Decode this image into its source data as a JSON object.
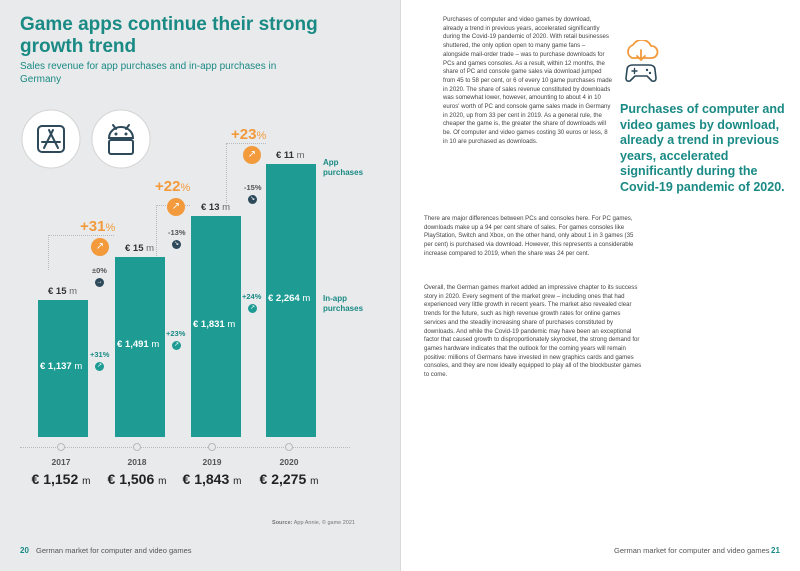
{
  "left": {
    "title": "Game apps continue their strong growth trend",
    "subtitle": "Sales revenue for app purchases and in-app purchases in Germany",
    "legend": {
      "app": "App purchases",
      "inapp": "In-app purchases"
    },
    "source_label": "Source:",
    "source_text": "App Annie, © game 2021",
    "page_number": "20",
    "footer": "German market for computer and video games"
  },
  "chart_data": {
    "type": "bar",
    "categories": [
      "2017",
      "2018",
      "2019",
      "2020"
    ],
    "series": [
      {
        "name": "In-app purchases",
        "values": [
          1137,
          1491,
          1831,
          2264
        ],
        "labels": [
          "€ 1,137",
          "€ 1,491",
          "€ 1,831",
          "€ 2,264"
        ]
      },
      {
        "name": "App purchases",
        "values": [
          15,
          15,
          13,
          11
        ],
        "labels": [
          "€ 15",
          "€ 15",
          "€ 13",
          "€ 11"
        ]
      }
    ],
    "totals": [
      "€ 1,152",
      "€ 1,506",
      "€ 1,843",
      "€ 2,275"
    ],
    "unit": "m",
    "total_growth": [
      "+31",
      "+22",
      "+23"
    ],
    "pct_unit": "%",
    "inapp_growth": [
      "+31%",
      "+23%",
      "+24%"
    ],
    "app_growth": [
      "±0%",
      "-13%",
      "-15%"
    ]
  },
  "right": {
    "paragraphs": [
      "Purchases of computer and video games by download, already a trend in previous years, accelerated significantly during the Covid-19 pandemic of 2020. With retail businesses shuttered, the only option open to many game fans – alongside mail-order trade – was to purchase downloads for PCs and games consoles. As a result, within 12 months, the share of PC and console game sales via download jumped from 45 to 58 per cent, or 6 of every 10 game purchases made in 2020. The share of sales revenue constituted by downloads was somewhat lower, however, amounting to about 4 in 10 euros' worth of PC and console game sales made in Germany in 2020, up from 33 per cent in 2019. As a general rule, the cheaper the game is, the greater the share of downloads will be. Of computer and video games costing 30 euros or less, 8 in 10 are purchased as downloads.",
      "There are major differences between PCs and consoles here. For PC games, downloads make up a 94 per cent share of sales. For games consoles like PlayStation, Switch and Xbox, on the other hand, only about 1 in 3 games (35 per cent) is purchased via download. However, this represents a considerable increase compared to 2019, when the share was 24 per cent.",
      "Overall, the German games market added an impressive chapter to its success story in 2020. Every segment of the market grew – including ones that had experienced very little growth in recent years. The market also revealed clear trends for the future, such as high revenue growth rates for online games services and the steadily increasing share of purchases constituted by downloads. And while the Covid-19 pandemic may have been an exceptional factor that caused growth to disproportionately skyrocket, the strong demand for games hardware indicates that the outlook for the coming years will remain positive: millions of Germans have invested in new graphics cards and games consoles, and they are now ideally equipped to play all of the blockbuster games to come."
    ],
    "pullquote": "Purchases of computer and video games by download, already a trend in previous years, accelerated significantly during the Covid-19 pandemic of 2020.",
    "page_number": "21",
    "footer": "German market for computer and video games"
  },
  "colors": {
    "accent": "#1a8a85",
    "bar": "#1e9c94",
    "highlight": "#f29a3c",
    "page_left": "#e9eaeb"
  },
  "icons": [
    "app-store-icon",
    "android-icon",
    "cloud-download-icon",
    "gamepad-icon",
    "arrow-up-right-icon",
    "arrow-down-right-icon",
    "arrow-right-icon"
  ]
}
